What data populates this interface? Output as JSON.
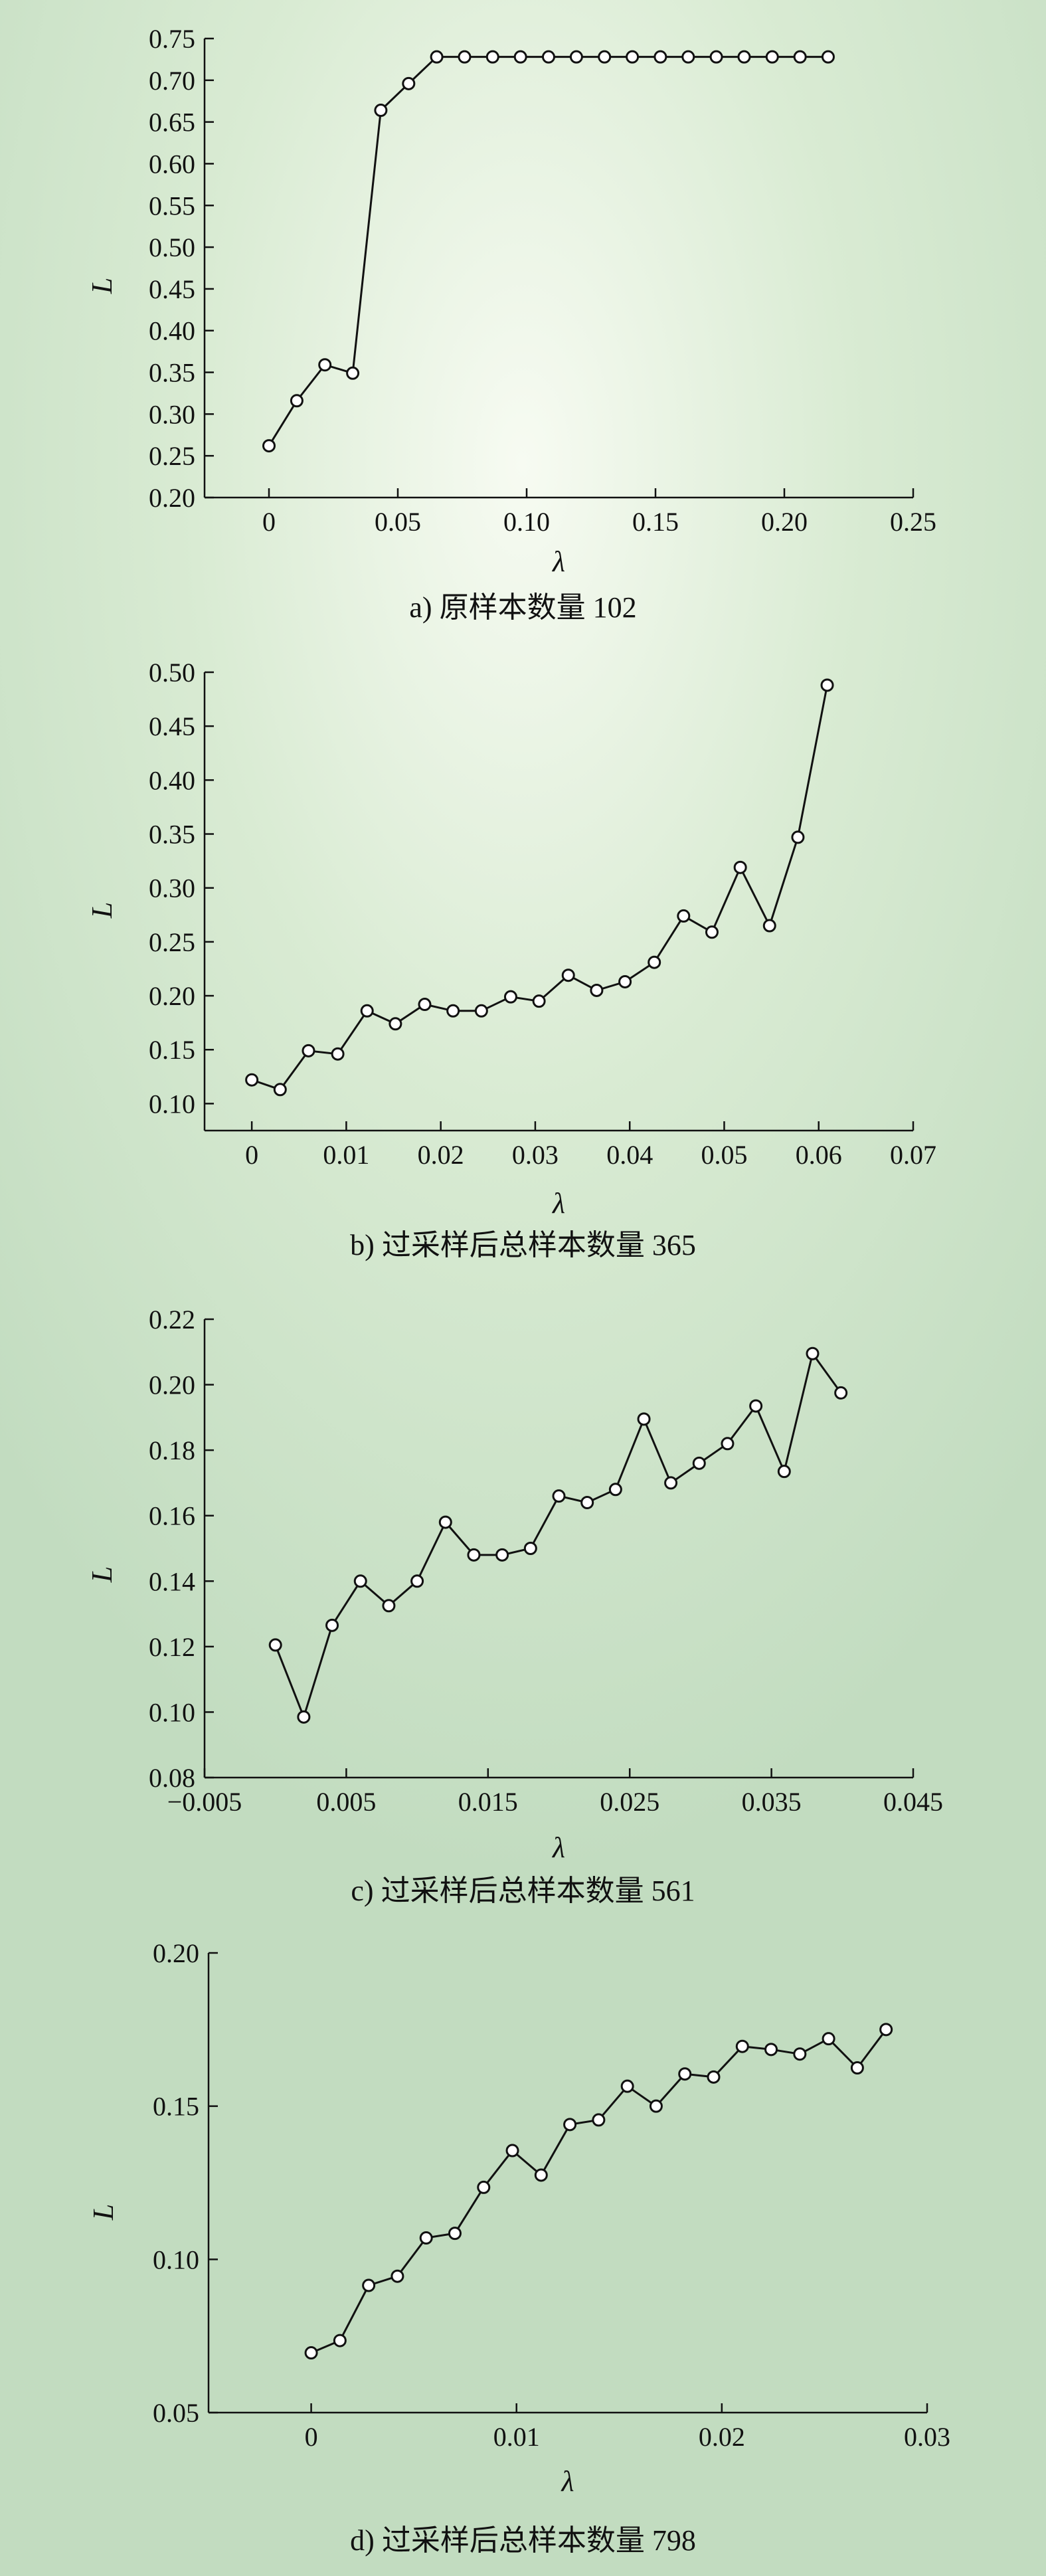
{
  "chart_data": [
    {
      "type": "line",
      "caption": "a) 原样本数量 102",
      "xlabel": "λ",
      "ylabel": "L",
      "xlim": [
        -0.025,
        0.25
      ],
      "ylim": [
        0.2,
        0.75
      ],
      "xticks": [
        0,
        0.05,
        0.1,
        0.15,
        0.2,
        0.25
      ],
      "xtick_labels": [
        "0",
        "0.05",
        "0.10",
        "0.15",
        "0.20",
        "0.25"
      ],
      "yticks": [
        0.2,
        0.25,
        0.3,
        0.35,
        0.4,
        0.45,
        0.5,
        0.55,
        0.6,
        0.65,
        0.7,
        0.75
      ],
      "ytick_labels": [
        "0.20",
        "0.25",
        "0.30",
        "0.35",
        "0.40",
        "0.45",
        "0.50",
        "0.55",
        "0.60",
        "0.65",
        "0.70",
        "0.75"
      ],
      "x": [
        0.0,
        0.0108,
        0.0217,
        0.0325,
        0.0434,
        0.0542,
        0.0651,
        0.0759,
        0.0868,
        0.0976,
        0.1085,
        0.1193,
        0.1302,
        0.141,
        0.1519,
        0.1627,
        0.1736,
        0.1844,
        0.1953,
        0.2061,
        0.217
      ],
      "y": [
        0.262,
        0.316,
        0.359,
        0.349,
        0.664,
        0.696,
        0.728,
        0.728,
        0.728,
        0.728,
        0.728,
        0.728,
        0.728,
        0.728,
        0.728,
        0.728,
        0.728,
        0.728,
        0.728,
        0.728,
        0.728
      ]
    },
    {
      "type": "line",
      "caption": "b) 过采样后总样本数量 365",
      "xlabel": "λ",
      "ylabel": "L",
      "xlim": [
        -0.005,
        0.07
      ],
      "ylim": [
        0.075,
        0.5
      ],
      "xticks": [
        0,
        0.01,
        0.02,
        0.03,
        0.04,
        0.05,
        0.06,
        0.07
      ],
      "xtick_labels": [
        "0",
        "0.01",
        "0.02",
        "0.03",
        "0.04",
        "0.05",
        "0.06",
        "0.07"
      ],
      "yticks": [
        0.1,
        0.15,
        0.2,
        0.25,
        0.3,
        0.35,
        0.4,
        0.45,
        0.5
      ],
      "ytick_labels": [
        "0.10",
        "0.15",
        "0.20",
        "0.25",
        "0.30",
        "0.35",
        "0.40",
        "0.45",
        "0.50"
      ],
      "x": [
        0.0,
        0.003,
        0.006,
        0.0091,
        0.0122,
        0.0152,
        0.0183,
        0.0213,
        0.0243,
        0.0274,
        0.0304,
        0.0335,
        0.0365,
        0.0395,
        0.0426,
        0.0457,
        0.0487,
        0.0517,
        0.0548,
        0.0578,
        0.0609
      ],
      "y": [
        0.122,
        0.113,
        0.149,
        0.146,
        0.186,
        0.174,
        0.192,
        0.186,
        0.186,
        0.199,
        0.195,
        0.219,
        0.205,
        0.213,
        0.231,
        0.274,
        0.259,
        0.319,
        0.265,
        0.347,
        0.488
      ]
    },
    {
      "type": "line",
      "caption": "c) 过采样后总样本数量 561",
      "xlabel": "λ",
      "ylabel": "L",
      "xlim": [
        -0.005,
        0.045
      ],
      "ylim": [
        0.08,
        0.22
      ],
      "xticks": [
        -0.005,
        0.005,
        0.015,
        0.025,
        0.035,
        0.045
      ],
      "xtick_labels": [
        "−0.005",
        "0.005",
        "0.015",
        "0.025",
        "0.035",
        "0.045"
      ],
      "yticks": [
        0.08,
        0.1,
        0.12,
        0.14,
        0.16,
        0.18,
        0.2,
        0.22
      ],
      "ytick_labels": [
        "0.08",
        "0.10",
        "0.12",
        "0.14",
        "0.16",
        "0.18",
        "0.20",
        "0.22"
      ],
      "x": [
        0.0,
        0.002,
        0.004,
        0.006,
        0.008,
        0.01,
        0.012,
        0.014,
        0.016,
        0.018,
        0.02,
        0.022,
        0.024,
        0.026,
        0.0279,
        0.0299,
        0.0319,
        0.0339,
        0.0359,
        0.0379,
        0.0399
      ],
      "y": [
        0.1205,
        0.0985,
        0.1265,
        0.14,
        0.1325,
        0.14,
        0.158,
        0.148,
        0.148,
        0.15,
        0.166,
        0.164,
        0.168,
        0.1895,
        0.17,
        0.176,
        0.182,
        0.1935,
        0.1735,
        0.2095,
        0.1975
      ]
    },
    {
      "type": "line",
      "caption": "d) 过采样后总样本数量 798",
      "xlabel": "λ",
      "ylabel": "L",
      "xlim": [
        -0.005,
        0.03
      ],
      "ylim": [
        0.05,
        0.2
      ],
      "xticks": [
        0,
        0.01,
        0.02,
        0.03
      ],
      "xtick_labels": [
        "0",
        "0.01",
        "0.02",
        "0.03"
      ],
      "yticks": [
        0.05,
        0.1,
        0.15,
        0.2
      ],
      "ytick_labels": [
        "0.05",
        "0.10",
        "0.15",
        "0.20"
      ],
      "x": [
        0.0,
        0.0014,
        0.0028,
        0.0042,
        0.0056,
        0.007,
        0.0084,
        0.0098,
        0.0112,
        0.0126,
        0.014,
        0.0154,
        0.0168,
        0.0182,
        0.0196,
        0.021,
        0.0224,
        0.0238,
        0.0252,
        0.0266,
        0.028
      ],
      "y": [
        0.0695,
        0.0735,
        0.0915,
        0.0945,
        0.107,
        0.1085,
        0.1235,
        0.1355,
        0.1275,
        0.144,
        0.1455,
        0.1565,
        0.15,
        0.1605,
        0.1595,
        0.1695,
        0.1685,
        0.167,
        0.172,
        0.1625,
        0.175
      ]
    }
  ]
}
